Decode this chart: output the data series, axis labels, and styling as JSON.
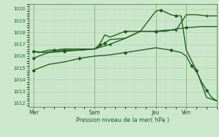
{
  "background_color": "#cce8cc",
  "grid_color_major": "#aaccaa",
  "grid_color_minor": "#bbddbb",
  "line_color": "#1a5c1a",
  "spine_color": "#336633",
  "xlabel": "Pression niveau de la mer( hPa )",
  "ylim": [
    1011.7,
    1020.4
  ],
  "yticks": [
    1012,
    1013,
    1014,
    1015,
    1016,
    1017,
    1018,
    1019,
    1020
  ],
  "xtick_labels": [
    "Mer",
    "Sam",
    "Jeu",
    "Ven"
  ],
  "xtick_pos": [
    0,
    24,
    48,
    60
  ],
  "xlim": [
    -2,
    72
  ],
  "vline_pos": [
    0,
    24,
    48,
    60
  ],
  "series": [
    {
      "x": [
        0,
        2,
        4,
        6,
        8,
        12,
        18,
        24,
        28,
        30,
        36,
        42,
        48,
        52,
        54,
        56,
        60,
        66,
        72
      ],
      "y": [
        1016.4,
        1016.3,
        1016.4,
        1016.5,
        1016.5,
        1016.6,
        1016.6,
        1016.6,
        1017.1,
        1017.4,
        1017.5,
        1018.1,
        1018.1,
        1018.2,
        1018.2,
        1018.3,
        1018.4,
        1018.5,
        1018.5
      ],
      "marker": "D",
      "markersize": 2.0,
      "linewidth": 1.0,
      "markevery": 4
    },
    {
      "x": [
        0,
        4,
        8,
        12,
        18,
        24,
        30,
        36,
        42,
        48,
        52,
        54,
        56,
        60,
        64,
        68,
        72
      ],
      "y": [
        1016.4,
        1016.3,
        1016.4,
        1016.5,
        1016.5,
        1016.6,
        1017.0,
        1017.5,
        1018.1,
        1018.1,
        1018.1,
        1018.2,
        1018.2,
        1019.5,
        1019.5,
        1019.4,
        1019.4
      ],
      "marker": "+",
      "markersize": 3.5,
      "linewidth": 1.0,
      "markevery": 3
    },
    {
      "x": [
        0,
        2,
        6,
        12,
        18,
        24,
        26,
        28,
        30,
        36,
        42,
        48,
        50,
        52,
        54,
        56,
        58,
        60,
        64,
        68,
        72
      ],
      "y": [
        1015.8,
        1016.0,
        1016.3,
        1016.4,
        1016.5,
        1016.6,
        1017.0,
        1017.8,
        1017.6,
        1018.1,
        1018.1,
        1019.8,
        1019.9,
        1019.7,
        1019.5,
        1019.4,
        1019.4,
        1016.5,
        1014.8,
        1012.5,
        1012.2
      ],
      "marker": "D",
      "markersize": 2.0,
      "linewidth": 1.0,
      "markevery": 3
    },
    {
      "x": [
        0,
        6,
        12,
        18,
        24,
        30,
        36,
        42,
        48,
        54,
        58,
        60,
        62,
        64,
        66,
        68,
        70,
        72
      ],
      "y": [
        1014.8,
        1015.3,
        1015.5,
        1015.8,
        1016.0,
        1016.1,
        1016.3,
        1016.5,
        1016.7,
        1016.5,
        1016.3,
        1016.0,
        1015.2,
        1014.7,
        1013.8,
        1013.1,
        1012.5,
        1012.2
      ],
      "marker": "D",
      "markersize": 2.0,
      "linewidth": 1.0,
      "markevery": 3
    }
  ]
}
